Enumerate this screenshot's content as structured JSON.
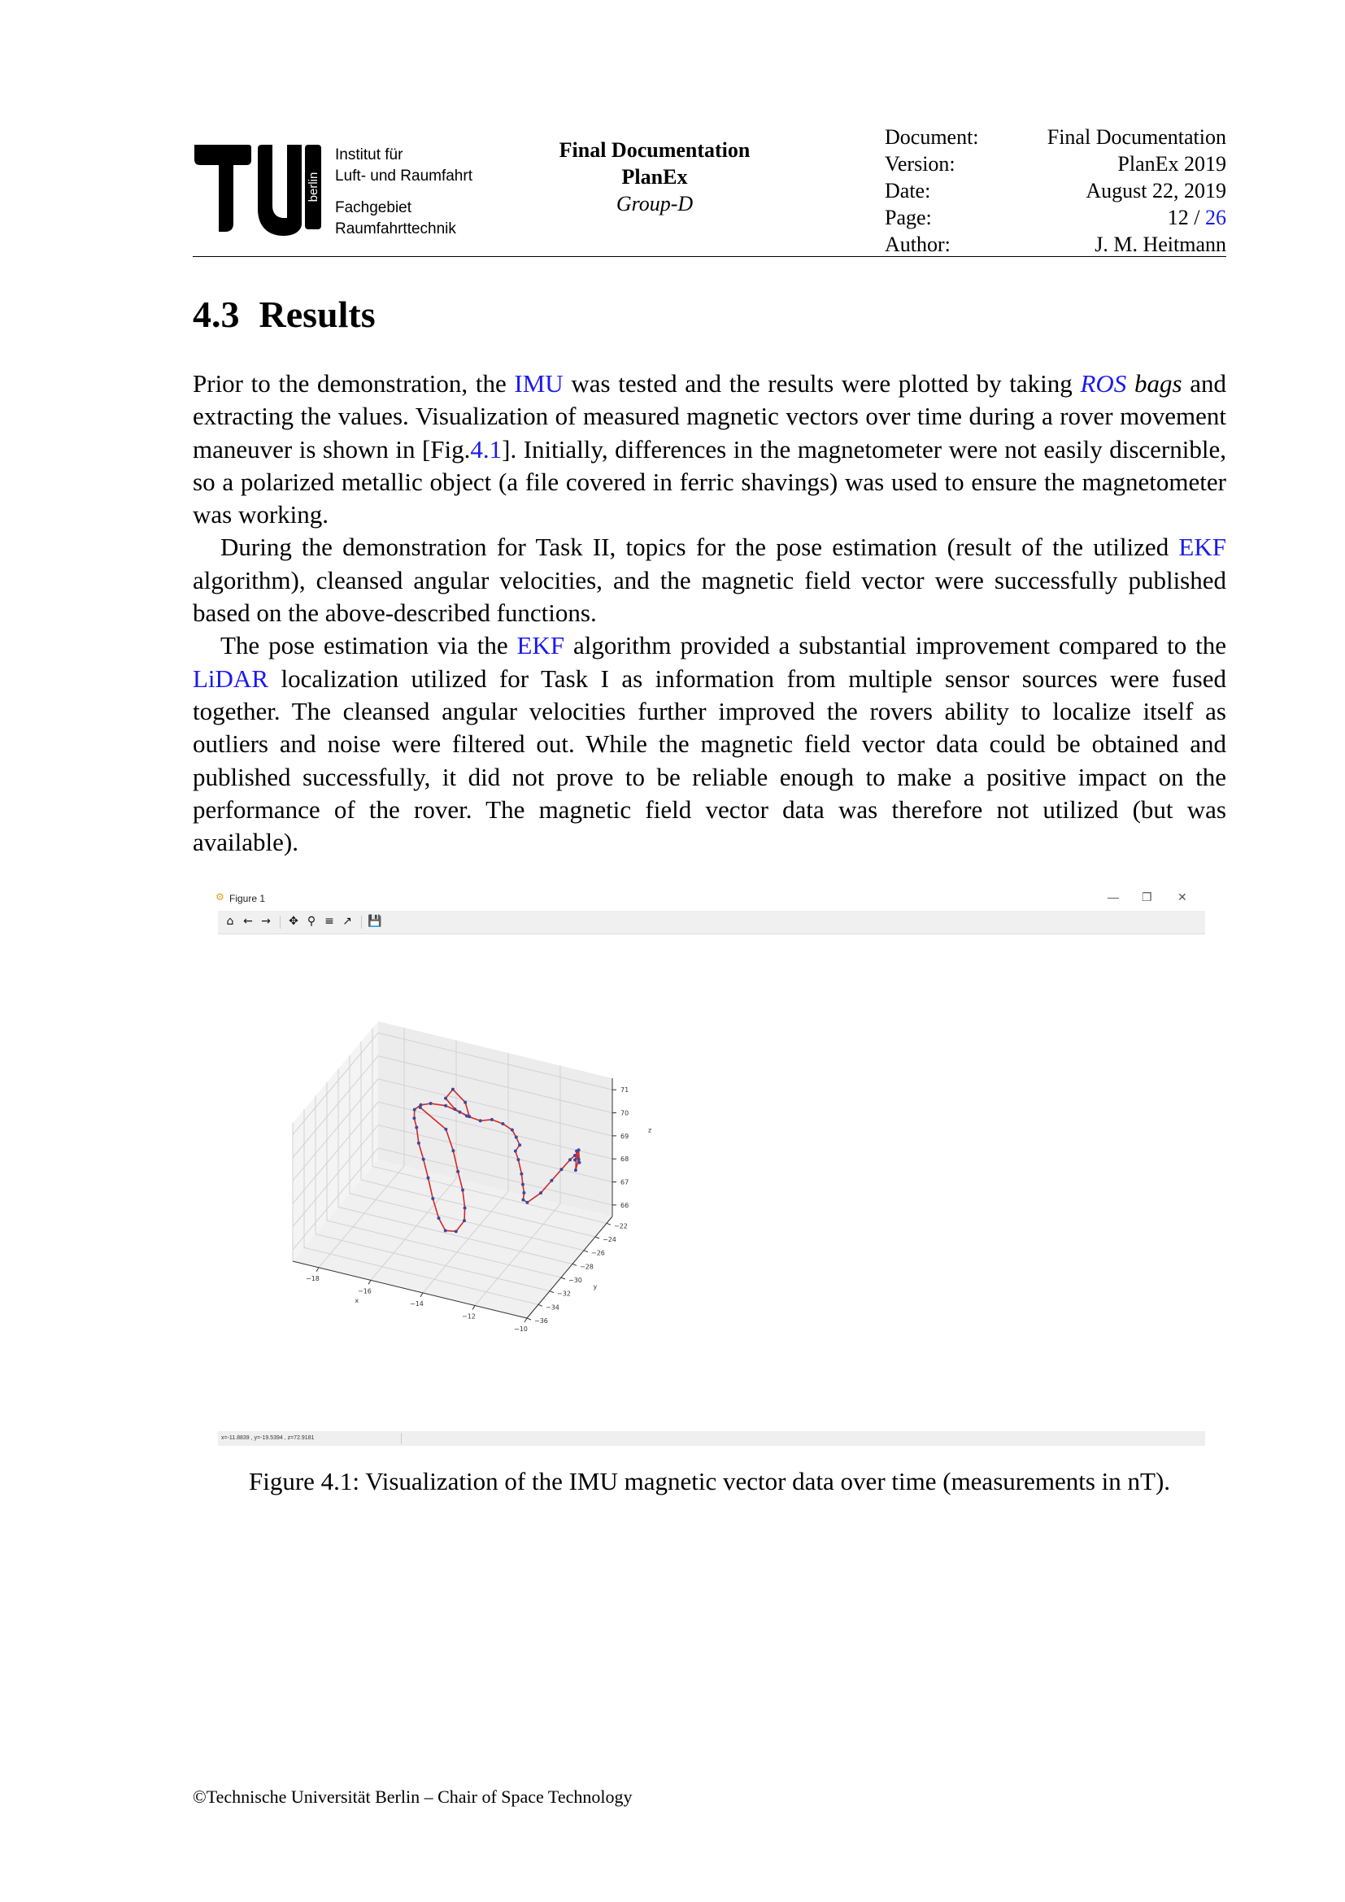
{
  "header": {
    "logo_text": "berlin",
    "institute_line1": "Institut für",
    "institute_line2": "Luft- und Raumfahrt",
    "department_line1": "Fachgebiet",
    "department_line2": "Raumfahrttechnik",
    "center_title": "Final Documentation",
    "center_project": "PlanEx",
    "center_group": "Group-D",
    "meta": {
      "document_label": "Document:",
      "document_value": "Final Documentation",
      "version_label": "Version:",
      "version_value": "PlanEx 2019",
      "date_label": "Date:",
      "date_value": "August 22, 2019",
      "page_label": "Page:",
      "page_current": "12",
      "page_sep": " / ",
      "page_total": "26",
      "author_label": "Author:",
      "author_value": "J. M. Heitmann"
    }
  },
  "section": {
    "number": "4.3",
    "title": "Results"
  },
  "paragraphs": {
    "p1": {
      "t1": "Prior to the demonstration, the ",
      "imu": "IMU",
      "t2": " was tested and the results were plotted by taking ",
      "ros": "ROS",
      "t3": " bags",
      "t4": " and extracting the values. Visualization of measured magnetic vectors over time during a rover movement maneuver is shown in [Fig.",
      "figref": "4.1",
      "t5": "]. Initially, differences in the magnetometer were not easily discernible, so a polarized metallic object (a file covered in ferric shavings) was used to ensure the magnetometer was working."
    },
    "p2": {
      "t1": "During the demonstration for Task II, topics for the pose estimation (result of the utilized ",
      "ekf": "EKF",
      "t2": " algorithm), cleansed angular velocities, and the magnetic field vector were successfully published based on the above-described functions."
    },
    "p3": {
      "t1": "The pose estimation via the ",
      "ekf": "EKF",
      "t2": " algorithm provided a substantial improvement compared to the ",
      "lidar": "LiDAR",
      "t3": " localization utilized for Task I as information from multiple sensor sources were fused together. The cleansed angular velocities further improved the rovers ability to localize itself as outliers and noise were filtered out.  While the magnetic field vector data could be obtained and published successfully, it did not prove to be reliable enough to make a positive impact on the performance of the rover. The magnetic field vector data was therefore not utilized (but was available)."
    }
  },
  "figure_window": {
    "title": "Figure 1",
    "toolbar_icons": [
      "home-icon",
      "back-arrow-icon",
      "forward-arrow-icon",
      "pan-icon",
      "zoom-icon",
      "configure-subplots-icon",
      "edit-axes-icon",
      "save-icon"
    ],
    "status_text": "x=-11.8839   , y=-19.5394   , z=72.9181"
  },
  "chart_data": {
    "type": "line3d",
    "title": "",
    "xlabel": "x",
    "ylabel": "y",
    "zlabel": "z",
    "xlim": [
      -19,
      -10
    ],
    "ylim": [
      -36,
      -21
    ],
    "zlim": [
      65.5,
      71.5
    ],
    "x_ticks": [
      "−18",
      "−16",
      "−14",
      "−12",
      "−10"
    ],
    "y_ticks": [
      "−36",
      "−34",
      "−32",
      "−30",
      "−28",
      "−26",
      "−24",
      "−22"
    ],
    "z_ticks": [
      "66",
      "67",
      "68",
      "69",
      "70",
      "71"
    ],
    "grid": true,
    "line_color": "#d62728",
    "marker_color": "#3b4aa0",
    "series": [
      {
        "x": [
          -16.4,
          -15.3,
          -14.8,
          -14.4,
          -14.0,
          -13.7,
          -13.5,
          -13.6,
          -13.9,
          -14.2,
          -14.6,
          -15.0,
          -15.4,
          -15.8,
          -16.1,
          -16.3,
          -16.4,
          -16.2,
          -15.8,
          -15.2,
          -14.7,
          -14.4,
          -14.6,
          -15.1,
          -15.4,
          -15.0,
          -14.5,
          -14.0,
          -13.6,
          -13.2,
          -12.8,
          -12.6,
          -12.4,
          -12.5,
          -12.3,
          -12.0,
          -11.8,
          -11.6,
          -11.5,
          -11.3,
          -11.0,
          -10.8,
          -10.6,
          -10.4,
          -10.3,
          -10.2,
          -10.25,
          -10.3,
          -10.15,
          -10.2,
          -10.3
        ],
        "y": [
          -25.5,
          -26.0,
          -27.0,
          -28.0,
          -29.0,
          -30.0,
          -31.0,
          -32.0,
          -32.5,
          -32.3,
          -31.5,
          -30.5,
          -29.5,
          -28.5,
          -27.5,
          -27.0,
          -26.5,
          -26.3,
          -26.4,
          -26.5,
          -26.3,
          -26.0,
          -25.8,
          -25.7,
          -25.6,
          -25.8,
          -26.0,
          -25.9,
          -25.7,
          -25.6,
          -25.8,
          -26.0,
          -26.3,
          -26.6,
          -27.0,
          -27.8,
          -28.5,
          -29.2,
          -29.8,
          -30.0,
          -29.0,
          -28.0,
          -27.2,
          -26.6,
          -26.2,
          -26.0,
          -26.3,
          -25.9,
          -26.1,
          -26.0,
          -26.2
        ],
        "z": [
          69.8,
          69.3,
          68.8,
          68.3,
          67.9,
          67.5,
          67.3,
          67.1,
          67.2,
          67.6,
          68.1,
          68.6,
          69.0,
          69.3,
          69.6,
          69.8,
          70.0,
          70.2,
          70.4,
          70.5,
          70.3,
          70.1,
          70.6,
          71.0,
          70.5,
          70.2,
          70.1,
          70.0,
          70.1,
          70.0,
          69.9,
          69.7,
          69.5,
          69.3,
          69.1,
          68.8,
          68.6,
          68.5,
          68.4,
          68.4,
          68.6,
          68.9,
          69.2,
          69.5,
          69.6,
          69.4,
          69.0,
          69.7,
          69.3,
          69.8,
          69.4
        ]
      }
    ]
  },
  "caption": "Figure 4.1: Visualization of the IMU magnetic vector data over time (measurements in nT).",
  "footer": "©Technische Universität Berlin – Chair of Space Technology"
}
